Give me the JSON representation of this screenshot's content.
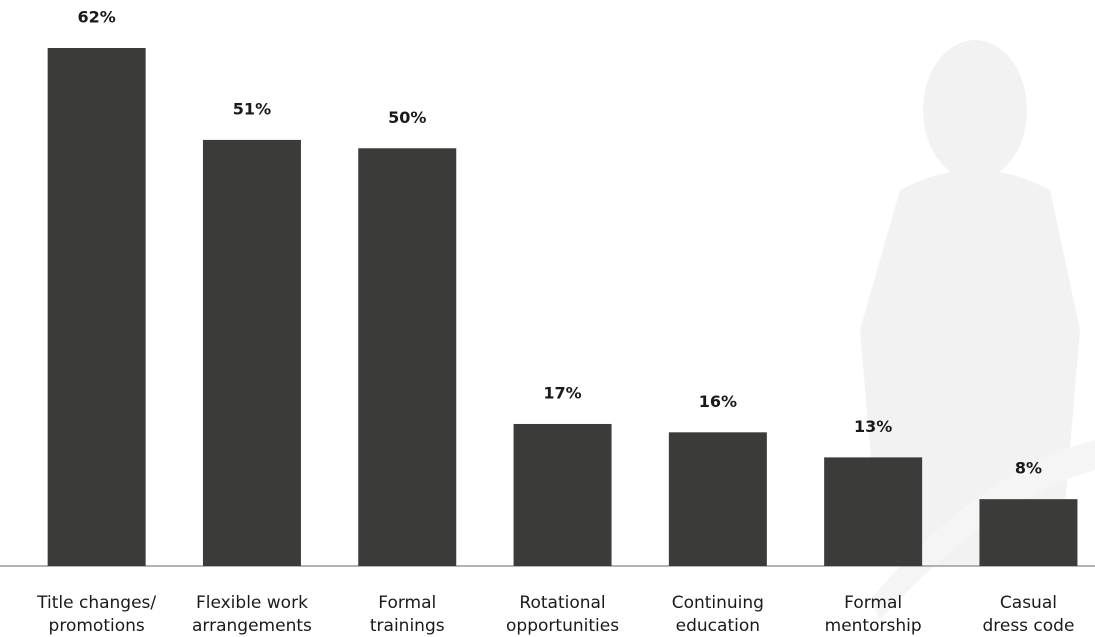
{
  "chart_data": {
    "type": "bar",
    "categories": [
      [
        "Title changes/",
        "promotions"
      ],
      [
        "Flexible work",
        "arrangements"
      ],
      [
        "Formal",
        "trainings"
      ],
      [
        "Rotational",
        "opportunities"
      ],
      [
        "Continuing",
        "education"
      ],
      [
        "Formal",
        "mentorship"
      ],
      [
        "Casual",
        "dress code"
      ]
    ],
    "values": [
      62,
      51,
      50,
      17,
      16,
      13,
      8
    ],
    "value_labels": [
      "62%",
      "51%",
      "50%",
      "17%",
      "16%",
      "13%",
      "8%"
    ],
    "color": "#3b3b39"
  }
}
